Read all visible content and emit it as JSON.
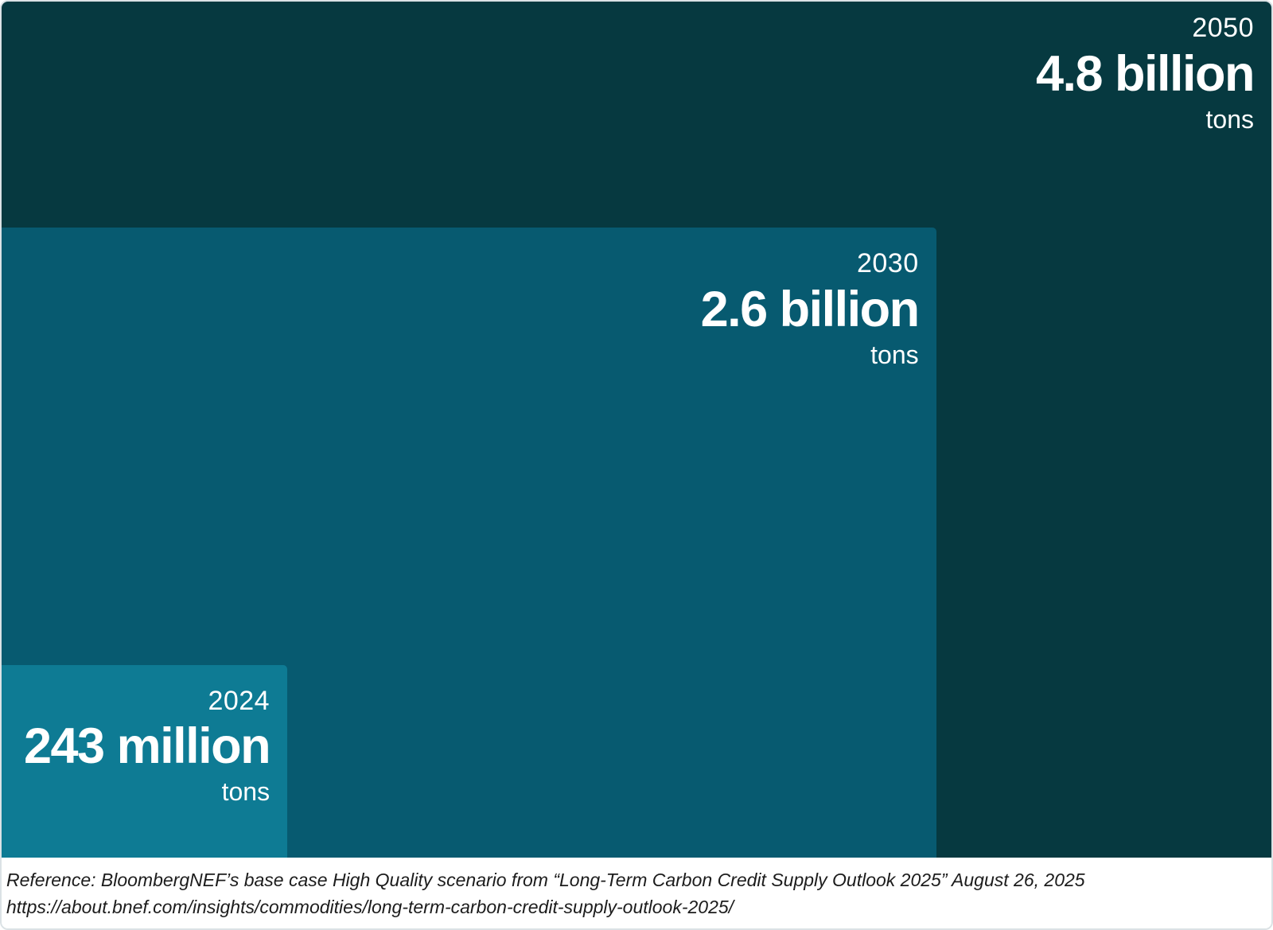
{
  "chart_data": {
    "type": "area",
    "subtype": "nested-proportional-rectangles",
    "title": "",
    "unit": "tons",
    "anchor": "bottom-left",
    "categories": [
      "2050",
      "2030",
      "2024"
    ],
    "values_tons": [
      4800000000,
      2600000000,
      243000000
    ],
    "series": [
      {
        "year": "2050",
        "value_label": "4.8 billion",
        "unit": "tons",
        "value_tons": 4800000000,
        "color": "#063940"
      },
      {
        "year": "2030",
        "value_label": "2.6 billion",
        "unit": "tons",
        "value_tons": 2600000000,
        "color": "#075A70"
      },
      {
        "year": "2024",
        "value_label": "243 million",
        "unit": "tons",
        "value_tons": 243000000,
        "color": "#0E7B94"
      }
    ],
    "label_text_color": "#ffffff",
    "legend": "none",
    "grid": false
  },
  "footer": {
    "reference_line1": "Reference: BloombergNEF’s base case High Quality scenario from “Long-Term Carbon Credit Supply Outlook 2025” August 26, 2025",
    "reference_line2": "https://about.bnef.com/insights/commodities/long-term-carbon-credit-supply-outlook-2025/"
  }
}
